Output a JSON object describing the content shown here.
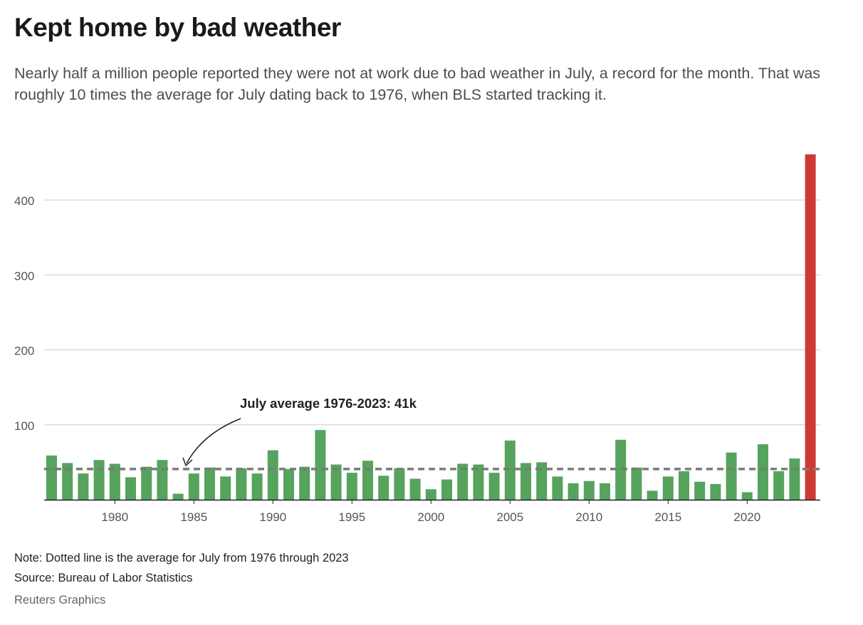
{
  "header": {
    "title": "Kept home by bad weather",
    "subtitle": "Nearly half a million people reported they were not at work due to bad weather in July, a record for the month. That was roughly 10 times the average for July dating back to 1976, when BLS started tracking it."
  },
  "footer": {
    "note": "Note: Dotted line is the average for July from 1976 through 2023",
    "source": "Source: Bureau of Labor Statistics",
    "credit": "Reuters Graphics"
  },
  "colors": {
    "bar": "#56a35e",
    "highlight_bar": "#cc3b33",
    "average_line": "#7a7a7a",
    "grid": "#cccccc"
  },
  "chart_data": {
    "type": "bar",
    "ylim": [
      0,
      460
    ],
    "yticks": [
      100,
      200,
      300,
      400
    ],
    "xticks": [
      1980,
      1985,
      1990,
      1995,
      2000,
      2005,
      2010,
      2015,
      2020
    ],
    "grid": true,
    "x": [
      1976,
      1977,
      1978,
      1979,
      1980,
      1981,
      1982,
      1983,
      1984,
      1985,
      1986,
      1987,
      1988,
      1989,
      1990,
      1991,
      1992,
      1993,
      1994,
      1995,
      1996,
      1997,
      1998,
      1999,
      2000,
      2001,
      2002,
      2003,
      2004,
      2005,
      2006,
      2007,
      2008,
      2009,
      2010,
      2011,
      2012,
      2013,
      2014,
      2015,
      2016,
      2017,
      2018,
      2019,
      2020,
      2021,
      2022,
      2023,
      2024
    ],
    "values": [
      59,
      49,
      35,
      53,
      48,
      30,
      44,
      53,
      8,
      35,
      43,
      31,
      42,
      35,
      66,
      41,
      44,
      93,
      47,
      36,
      52,
      32,
      42,
      28,
      14,
      27,
      48,
      47,
      36,
      79,
      49,
      50,
      31,
      22,
      25,
      22,
      80,
      43,
      12,
      31,
      38,
      24,
      21,
      63,
      10,
      74,
      38,
      55,
      461
    ],
    "highlight_index": 48,
    "average": {
      "value": 41,
      "label": "July average 1976-2023: 41k"
    }
  }
}
